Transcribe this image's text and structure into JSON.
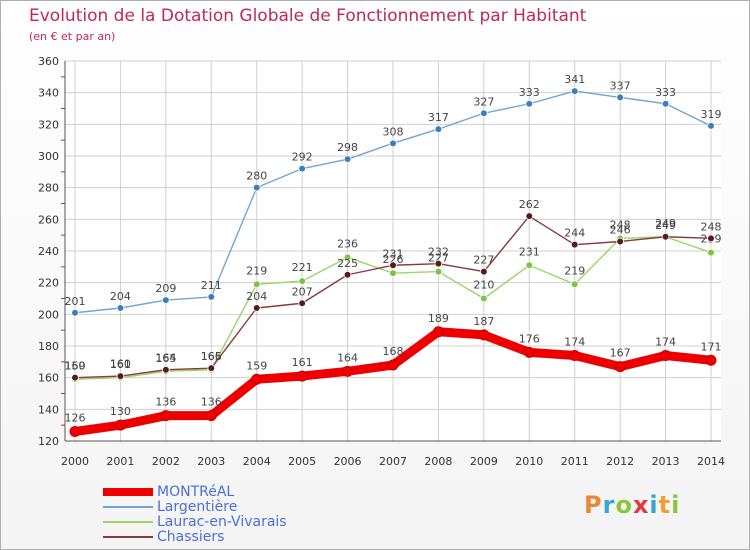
{
  "header": {
    "title": "Evolution de la Dotation Globale de Fonctionnement par Habitant",
    "subtitle": "(en € et par an)"
  },
  "logo": {
    "letters": [
      "P",
      "r",
      "o",
      "x",
      "i",
      "t",
      "i"
    ],
    "colors": [
      "#e8893a",
      "#3aa3d8",
      "#8cc63f",
      "#e23b3b",
      "#3aa3d8",
      "#f0a030",
      "#8cc63f"
    ]
  },
  "chart_data": {
    "type": "line",
    "title": "Evolution de la Dotation Globale de Fonctionnement par Habitant",
    "subtitle": "(en € et par an)",
    "xlabel": "",
    "ylabel": "",
    "ylim": [
      120,
      360
    ],
    "yticks": [
      "120",
      "140",
      "160",
      "180",
      "200",
      "220",
      "240",
      "260",
      "280",
      "300",
      "320",
      "340",
      "360"
    ],
    "categories": [
      "2000",
      "2001",
      "2002",
      "2003",
      "2004",
      "2005",
      "2006",
      "2007",
      "2008",
      "2009",
      "2010",
      "2011",
      "2012",
      "2013",
      "2014"
    ],
    "grid": true,
    "legend_position": "bottom-left",
    "series": [
      {
        "name": "Largentière",
        "color": "#6ca7d8",
        "marker": "#3a7fc0",
        "values": [
          201,
          204,
          209,
          211,
          280,
          292,
          298,
          308,
          317,
          327,
          333,
          341,
          337,
          333,
          319
        ]
      },
      {
        "name": "Laurac-en-Vivarais",
        "color": "#9ad66a",
        "marker": "#7cc444",
        "values": [
          159,
          160,
          164,
          165,
          219,
          221,
          236,
          226,
          227,
          210,
          231,
          219,
          248,
          249,
          239
        ]
      },
      {
        "name": "Chassiers",
        "color": "#8a3a3a",
        "marker": "#5a1a1a",
        "values": [
          160,
          161,
          165,
          166,
          204,
          207,
          225,
          231,
          232,
          227,
          262,
          244,
          246,
          249,
          248
        ]
      },
      {
        "name": "MONTRéAL",
        "color": "#ee0000",
        "marker": "#ee0000",
        "values": [
          126,
          130,
          136,
          136,
          159,
          161,
          164,
          168,
          189,
          187,
          176,
          174,
          167,
          174,
          171
        ]
      }
    ]
  }
}
